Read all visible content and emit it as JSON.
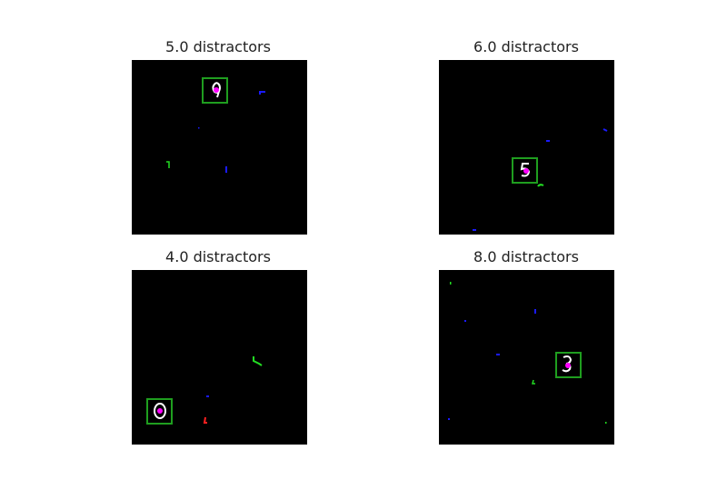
{
  "panels": [
    {
      "title": "5.0 distractors",
      "digit": "9"
    },
    {
      "title": "6.0 distractors",
      "digit": "5"
    },
    {
      "title": "4.0 distractors",
      "digit": "0"
    },
    {
      "title": "8.0 distractors",
      "digit": "3"
    }
  ],
  "colors": {
    "background": "#000000",
    "box": "#1f9e1f",
    "marker": "#ff00ff",
    "digit": "#ffffff",
    "distractor_blue": "#1a1aff",
    "distractor_green": "#22dd22",
    "distractor_red": "#ff2020"
  }
}
